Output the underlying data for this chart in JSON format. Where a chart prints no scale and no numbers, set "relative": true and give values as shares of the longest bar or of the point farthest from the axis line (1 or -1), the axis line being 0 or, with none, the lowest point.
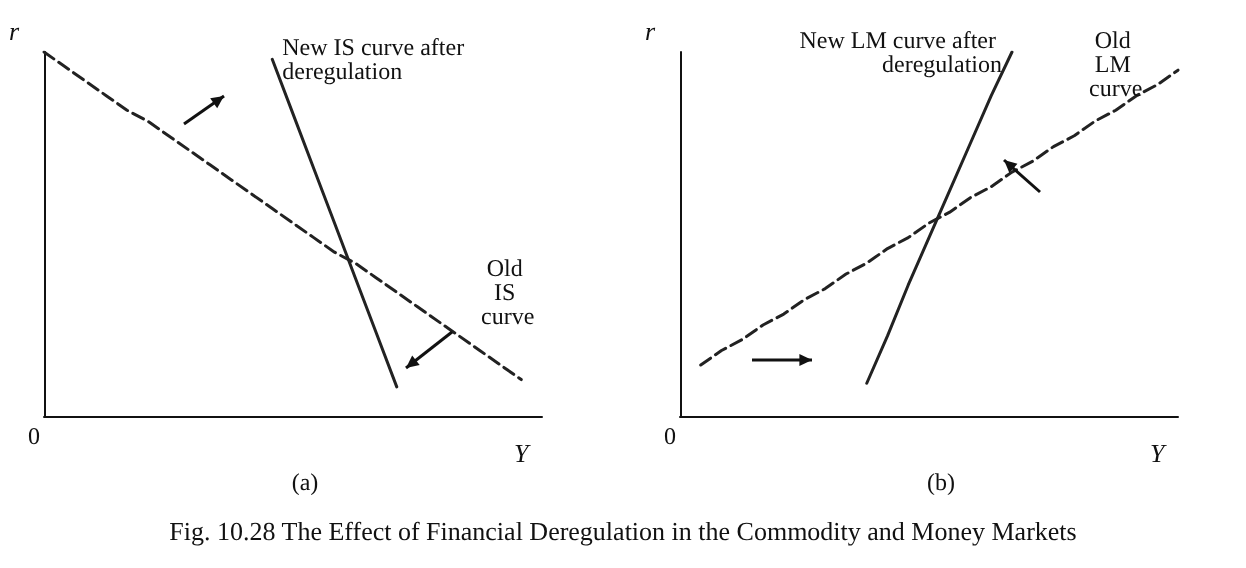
{
  "chart_data": [
    {
      "type": "line",
      "relative": true,
      "subtitle": "(a)",
      "xlabel": "Y",
      "ylabel": "r",
      "annotations": [
        "0"
      ],
      "grid": false,
      "legend": false,
      "marker": "none",
      "categories": [
        null,
        null,
        null,
        null,
        null,
        null,
        null,
        null,
        null,
        null,
        null,
        null,
        null,
        null,
        null,
        null,
        null,
        null,
        null,
        null,
        null,
        null,
        null,
        null,
        null
      ],
      "series": [
        {
          "name": "Old IS curve",
          "color": "#222222",
          "line_style": "dashed",
          "values": [
            1,
            0.96,
            0.92,
            0.88,
            0.84,
            0.81,
            0.77,
            0.73,
            0.69,
            0.65,
            0.61,
            0.57,
            0.53,
            0.49,
            0.45,
            0.42,
            0.38,
            0.34,
            0.3,
            0.26,
            0.22,
            0.18,
            0.14,
            0.1,
            null
          ]
        },
        {
          "name": "New IS curve after deregulation",
          "color": "#222222",
          "line_style": "solid",
          "values": [
            null,
            null,
            null,
            null,
            null,
            null,
            null,
            null,
            null,
            null,
            null,
            0.98,
            0.83,
            0.68,
            0.53,
            0.38,
            0.23,
            0.08,
            null,
            null,
            null,
            null,
            null,
            null,
            null
          ]
        }
      ]
    },
    {
      "type": "line",
      "relative": true,
      "subtitle": "(b)",
      "xlabel": "Y",
      "ylabel": "r",
      "annotations": [
        "0",
        "Fig. 10.28 The Effect of Financial Deregulation in the Commodity and Money Markets"
      ],
      "grid": false,
      "legend": false,
      "marker": "none",
      "categories": [
        null,
        null,
        null,
        null,
        null,
        null,
        null,
        null,
        null,
        null,
        null,
        null,
        null,
        null,
        null,
        null,
        null,
        null,
        null,
        null,
        null,
        null,
        null,
        null,
        null
      ],
      "series": [
        {
          "name": "Old LM curve",
          "color": "#222222",
          "line_style": "dashed",
          "values": [
            null,
            0.14,
            0.18,
            0.21,
            0.25,
            0.28,
            0.32,
            0.35,
            0.39,
            0.42,
            0.46,
            0.49,
            0.53,
            0.56,
            0.6,
            0.63,
            0.67,
            0.7,
            0.74,
            0.77,
            0.81,
            0.84,
            0.88,
            0.91,
            0.95
          ]
        },
        {
          "name": "New LM curve after deregulation",
          "color": "#222222",
          "line_style": "solid",
          "values": [
            null,
            null,
            null,
            null,
            null,
            null,
            null,
            null,
            null,
            0.09,
            0.22,
            0.36,
            0.49,
            0.62,
            0.75,
            0.88,
            1,
            null,
            null,
            null,
            null,
            null,
            null,
            null,
            null
          ]
        }
      ]
    }
  ]
}
